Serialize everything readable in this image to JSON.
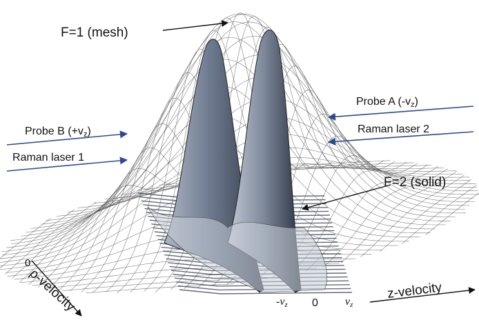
{
  "labels": {
    "f1_mesh": "F=1 (mesh)",
    "f2_solid": "F=2 (solid)",
    "probe_a": "Probe A (-v",
    "probe_a_sub": "z",
    "probe_a_close": ")",
    "probe_b": "Probe B (+v",
    "probe_b_sub": "z",
    "probe_b_close": ")",
    "raman_1": "Raman laser 1",
    "raman_2": "Raman laser 2"
  },
  "axes": {
    "rho_label": "ρ-velocity",
    "rho_zero": "0",
    "z_label": "z-velocity",
    "z_tick_neg_v": "-v",
    "z_tick_neg_sub": "z",
    "z_tick_zero": "0",
    "z_tick_pos_v": "v",
    "z_tick_pos_sub": "z"
  },
  "colors": {
    "beam_arrow": "#2e4a8f",
    "mesh_line": "#5a5a5a",
    "solid_surface": "#8c97aa",
    "solid_dark": "#3c4658"
  }
}
